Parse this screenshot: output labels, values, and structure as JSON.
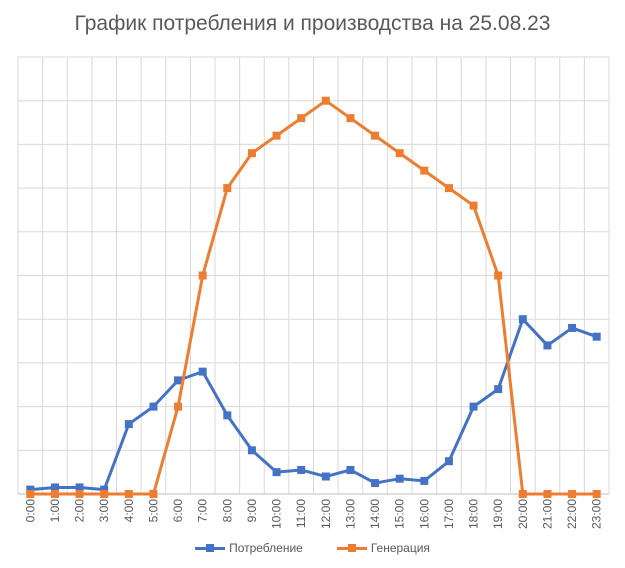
{
  "chart_data": {
    "type": "line",
    "title": "График потребления и производства на 25.08.23",
    "xlabel": "",
    "ylabel": "",
    "categories": [
      "0:00",
      "1:00",
      "2:00",
      "3:00",
      "4:00",
      "5:00",
      "6:00",
      "7:00",
      "8:00",
      "9:00",
      "10:00",
      "11:00",
      "12:00",
      "13:00",
      "14:00",
      "15:00",
      "16:00",
      "17:00",
      "18:00",
      "19:00",
      "20:00",
      "21:00",
      "22:00",
      "23:00"
    ],
    "ylim": [
      0,
      10
    ],
    "y_tick_labels_visible": false,
    "grid": {
      "vertical": true,
      "horizontal": true
    },
    "legend_position": "bottom",
    "series": [
      {
        "name": "Потребление",
        "color": "#4472C4",
        "values": [
          0.1,
          0.15,
          0.15,
          0.1,
          1.6,
          2.0,
          2.6,
          2.8,
          1.8,
          1.0,
          0.5,
          0.55,
          0.4,
          0.55,
          0.25,
          0.35,
          0.3,
          0.75,
          2.0,
          2.4,
          4.0,
          3.4,
          3.8,
          3.6
        ]
      },
      {
        "name": "Генерация",
        "color": "#ED7D31",
        "values": [
          0,
          0,
          0,
          0,
          0,
          0,
          2.0,
          5.0,
          7.0,
          7.8,
          8.2,
          8.6,
          9.0,
          8.6,
          8.2,
          7.8,
          7.4,
          7.0,
          6.6,
          5.0,
          0,
          0,
          0,
          0
        ]
      }
    ]
  }
}
